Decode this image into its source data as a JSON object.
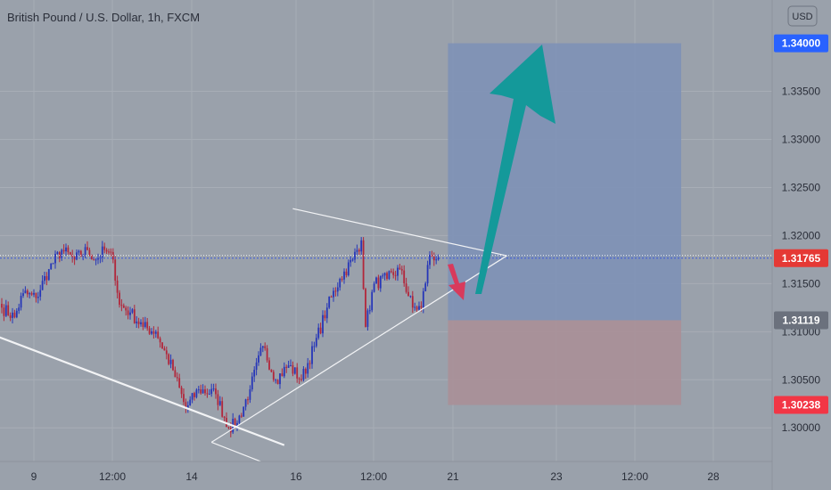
{
  "header": {
    "title": "British Pound / U.S. Dollar, 1h, FXCM",
    "currency_button": "USD"
  },
  "colors": {
    "background": "#9aa1ab",
    "grid": "#a7adb6",
    "up": "#2636b8",
    "down": "#b2263a",
    "target_zone": "#7e91b6",
    "stop_zone": "#aa8f97",
    "arrow_up": "#14999a",
    "arrow_down": "#d83a5c",
    "tag_target": "#2962ff",
    "tag_current": "#e53935",
    "tag_entry": "#6b717d",
    "tag_stop": "#f23645"
  },
  "chart_data": {
    "type": "candlestick",
    "title": "British Pound / U.S. Dollar, 1h, FXCM",
    "ylim": [
      1.2965,
      1.3445
    ],
    "y_ticks": [
      "1.30000",
      "1.30500",
      "1.31000",
      "1.31500",
      "1.32000",
      "1.32500",
      "1.33000",
      "1.33500"
    ],
    "x_ticks": [
      "9",
      "12:00",
      "14",
      "16",
      "12:00",
      "21",
      "23",
      "12:00",
      "28"
    ],
    "grid": true,
    "price_tags": [
      {
        "name": "target",
        "value": "1.34000"
      },
      {
        "name": "current",
        "value": "1.31765"
      },
      {
        "name": "entry",
        "value": "1.31119"
      },
      {
        "name": "stop",
        "value": "1.30238"
      }
    ],
    "position": {
      "entry": 1.31119,
      "target": 1.34,
      "stop": 1.30238
    },
    "anchors": [
      {
        "bar": 0,
        "close": 1.3125
      },
      {
        "bar": 6,
        "close": 1.3115
      },
      {
        "bar": 10,
        "close": 1.314
      },
      {
        "bar": 16,
        "close": 1.3135
      },
      {
        "bar": 22,
        "close": 1.3165
      },
      {
        "bar": 28,
        "close": 1.3185
      },
      {
        "bar": 34,
        "close": 1.3175
      },
      {
        "bar": 40,
        "close": 1.3185
      },
      {
        "bar": 44,
        "close": 1.3175
      },
      {
        "bar": 48,
        "close": 1.3185
      },
      {
        "bar": 52,
        "close": 1.3175
      },
      {
        "bar": 55,
        "close": 1.3128
      },
      {
        "bar": 60,
        "close": 1.312
      },
      {
        "bar": 66,
        "close": 1.3105
      },
      {
        "bar": 72,
        "close": 1.31
      },
      {
        "bar": 80,
        "close": 1.306
      },
      {
        "bar": 86,
        "close": 1.302
      },
      {
        "bar": 92,
        "close": 1.304
      },
      {
        "bar": 100,
        "close": 1.3035
      },
      {
        "bar": 106,
        "close": 1.3
      },
      {
        "bar": 110,
        "close": 1.3005
      },
      {
        "bar": 116,
        "close": 1.304
      },
      {
        "bar": 122,
        "close": 1.3085
      },
      {
        "bar": 128,
        "close": 1.305
      },
      {
        "bar": 134,
        "close": 1.3065
      },
      {
        "bar": 140,
        "close": 1.305
      },
      {
        "bar": 146,
        "close": 1.3085
      },
      {
        "bar": 152,
        "close": 1.3125
      },
      {
        "bar": 158,
        "close": 1.3155
      },
      {
        "bar": 164,
        "close": 1.3175
      },
      {
        "bar": 168,
        "close": 1.3195
      },
      {
        "bar": 170,
        "close": 1.3105
      },
      {
        "bar": 174,
        "close": 1.315
      },
      {
        "bar": 180,
        "close": 1.3155
      },
      {
        "bar": 186,
        "close": 1.3165
      },
      {
        "bar": 192,
        "close": 1.3125
      },
      {
        "bar": 196,
        "close": 1.3125
      },
      {
        "bar": 200,
        "close": 1.318
      },
      {
        "bar": 204,
        "close": 1.3177
      }
    ],
    "trendlines": [
      {
        "from_bar": 136,
        "from_price": 1.3228,
        "to_bar": 236,
        "to_price": 1.3179
      },
      {
        "from_bar": 98,
        "from_price": 1.2985,
        "to_bar": 236,
        "to_price": 1.3179
      },
      {
        "from_bar": -2,
        "from_price": 1.3095,
        "to_bar": 132,
        "to_price": 1.2982
      }
    ]
  }
}
